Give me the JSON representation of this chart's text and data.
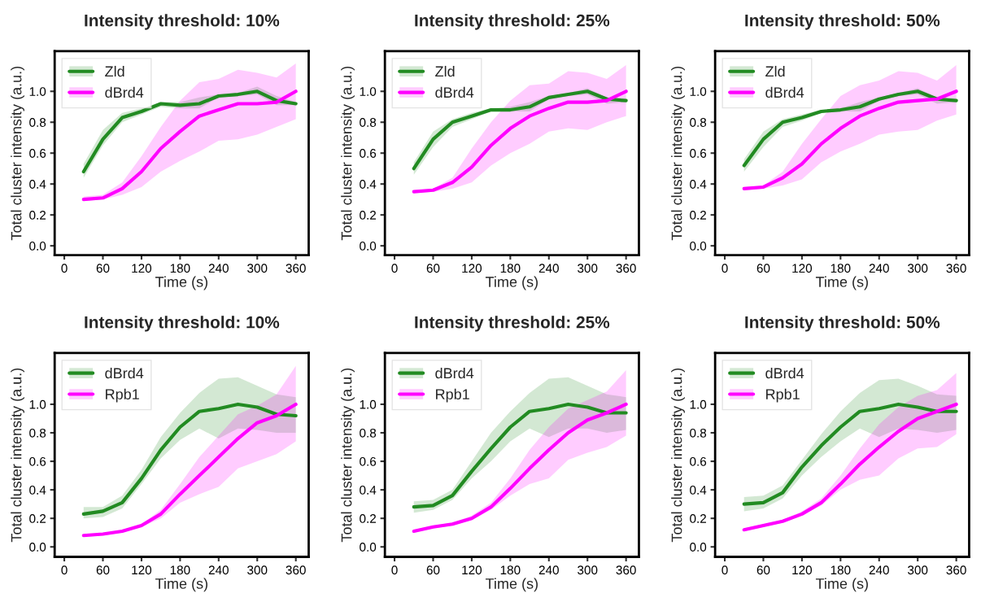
{
  "chart_data": [
    {
      "type": "line",
      "title": "Intensity threshold: 10%",
      "xlabel": "Time (s)",
      "ylabel": "Total cluster intensity (a.u.)",
      "x": [
        30,
        60,
        90,
        120,
        150,
        180,
        210,
        240,
        270,
        300,
        330,
        360
      ],
      "xlim": [
        -15,
        380
      ],
      "ylim": [
        -0.06,
        1.26
      ],
      "xticks": [
        0,
        60,
        120,
        180,
        240,
        300,
        360
      ],
      "yticks": [
        {
          "value": 0,
          "label": "0.0"
        },
        {
          "value": 0.2,
          "label": "0.2"
        },
        {
          "value": 0.4,
          "label": "0.4"
        },
        {
          "value": 0.6,
          "label": "0.6"
        },
        {
          "value": 0.8,
          "label": "0.8"
        },
        {
          "value": 1,
          "label": "1.0"
        }
      ],
      "legend": "top left",
      "series": [
        {
          "name": "Zld",
          "color": "#228b22",
          "values": [
            0.48,
            0.69,
            0.83,
            0.87,
            0.92,
            0.91,
            0.92,
            0.97,
            0.98,
            1.0,
            0.94,
            0.92
          ],
          "lower": [
            0.44,
            0.65,
            0.8,
            0.85,
            0.9,
            0.89,
            0.89,
            0.96,
            0.97,
            0.98,
            0.91,
            0.91
          ],
          "upper": [
            0.53,
            0.75,
            0.86,
            0.89,
            0.93,
            0.93,
            0.96,
            0.98,
            0.99,
            1.03,
            0.97,
            0.93
          ]
        },
        {
          "name": "dBrd4",
          "color": "#ff00ff",
          "values": [
            0.3,
            0.31,
            0.37,
            0.48,
            0.63,
            0.74,
            0.84,
            0.88,
            0.92,
            0.92,
            0.93,
            1.0
          ],
          "lower": [
            0.29,
            0.3,
            0.33,
            0.38,
            0.48,
            0.55,
            0.61,
            0.68,
            0.69,
            0.72,
            0.77,
            0.82
          ],
          "upper": [
            0.32,
            0.33,
            0.41,
            0.58,
            0.77,
            0.94,
            1.06,
            1.08,
            1.14,
            1.12,
            1.09,
            1.18
          ]
        }
      ]
    },
    {
      "type": "line",
      "title": "Intensity threshold: 25%",
      "xlabel": "Time (s)",
      "ylabel": "Total cluster intensity (a.u.)",
      "x": [
        30,
        60,
        90,
        120,
        150,
        180,
        210,
        240,
        270,
        300,
        330,
        360
      ],
      "xlim": [
        -15,
        380
      ],
      "ylim": [
        -0.06,
        1.26
      ],
      "xticks": [
        0,
        60,
        120,
        180,
        240,
        300,
        360
      ],
      "yticks": [
        {
          "value": 0,
          "label": "0.0"
        },
        {
          "value": 0.2,
          "label": "0.2"
        },
        {
          "value": 0.4,
          "label": "0.4"
        },
        {
          "value": 0.6,
          "label": "0.6"
        },
        {
          "value": 0.8,
          "label": "0.8"
        },
        {
          "value": 1,
          "label": "1.0"
        }
      ],
      "legend": "top left",
      "series": [
        {
          "name": "Zld",
          "color": "#228b22",
          "values": [
            0.5,
            0.69,
            0.8,
            0.84,
            0.88,
            0.88,
            0.9,
            0.96,
            0.98,
            1.0,
            0.95,
            0.94
          ],
          "lower": [
            0.46,
            0.64,
            0.77,
            0.82,
            0.87,
            0.87,
            0.87,
            0.95,
            0.97,
            0.98,
            0.92,
            0.93
          ],
          "upper": [
            0.54,
            0.74,
            0.82,
            0.86,
            0.89,
            0.9,
            0.93,
            0.97,
            0.99,
            1.02,
            0.96,
            0.95
          ]
        },
        {
          "name": "dBrd4",
          "color": "#ff00ff",
          "values": [
            0.35,
            0.36,
            0.41,
            0.51,
            0.65,
            0.76,
            0.84,
            0.89,
            0.93,
            0.93,
            0.94,
            1.0
          ],
          "lower": [
            0.34,
            0.35,
            0.37,
            0.41,
            0.52,
            0.6,
            0.66,
            0.74,
            0.76,
            0.75,
            0.8,
            0.84
          ],
          "upper": [
            0.36,
            0.37,
            0.44,
            0.63,
            0.8,
            0.94,
            1.04,
            1.05,
            1.13,
            1.12,
            1.08,
            1.17
          ]
        }
      ]
    },
    {
      "type": "line",
      "title": "Intensity threshold: 50%",
      "xlabel": "Time (s)",
      "ylabel": "Total cluster intensity (a.u.)",
      "x": [
        30,
        60,
        90,
        120,
        150,
        180,
        210,
        240,
        270,
        300,
        330,
        360
      ],
      "xlim": [
        -15,
        380
      ],
      "ylim": [
        -0.06,
        1.26
      ],
      "xticks": [
        0,
        60,
        120,
        180,
        240,
        300,
        360
      ],
      "yticks": [
        {
          "value": 0,
          "label": "0.0"
        },
        {
          "value": 0.2,
          "label": "0.2"
        },
        {
          "value": 0.4,
          "label": "0.4"
        },
        {
          "value": 0.6,
          "label": "0.6"
        },
        {
          "value": 0.8,
          "label": "0.8"
        },
        {
          "value": 1,
          "label": "1.0"
        }
      ],
      "legend": "top left",
      "series": [
        {
          "name": "Zld",
          "color": "#228b22",
          "values": [
            0.52,
            0.69,
            0.8,
            0.83,
            0.87,
            0.88,
            0.9,
            0.95,
            0.98,
            1.0,
            0.95,
            0.94
          ],
          "lower": [
            0.48,
            0.64,
            0.77,
            0.81,
            0.86,
            0.87,
            0.87,
            0.94,
            0.97,
            0.98,
            0.92,
            0.93
          ],
          "upper": [
            0.56,
            0.74,
            0.82,
            0.85,
            0.88,
            0.89,
            0.93,
            0.96,
            0.99,
            1.02,
            0.96,
            0.95
          ]
        },
        {
          "name": "dBrd4",
          "color": "#ff00ff",
          "values": [
            0.37,
            0.38,
            0.44,
            0.53,
            0.66,
            0.76,
            0.84,
            0.89,
            0.93,
            0.94,
            0.95,
            1.0
          ],
          "lower": [
            0.36,
            0.37,
            0.39,
            0.43,
            0.54,
            0.61,
            0.66,
            0.72,
            0.74,
            0.75,
            0.81,
            0.85
          ],
          "upper": [
            0.38,
            0.39,
            0.48,
            0.66,
            0.82,
            0.97,
            1.04,
            1.07,
            1.13,
            1.12,
            1.07,
            1.17
          ]
        }
      ]
    },
    {
      "type": "line",
      "title": "Intensity threshold: 10%",
      "xlabel": "Time (s)",
      "ylabel": "Total cluster intensity (a.u.)",
      "x": [
        30,
        60,
        90,
        120,
        150,
        180,
        210,
        240,
        270,
        300,
        330,
        360
      ],
      "xlim": [
        -15,
        380
      ],
      "ylim": [
        -0.07,
        1.36
      ],
      "xticks": [
        0,
        60,
        120,
        180,
        240,
        300,
        360
      ],
      "yticks": [
        {
          "value": 0,
          "label": "0.0"
        },
        {
          "value": 0.2,
          "label": "0.2"
        },
        {
          "value": 0.4,
          "label": "0.4"
        },
        {
          "value": 0.6,
          "label": "0.6"
        },
        {
          "value": 0.8,
          "label": "0.8"
        },
        {
          "value": 1,
          "label": "1.0"
        }
      ],
      "legend": "top left",
      "series": [
        {
          "name": "dBrd4",
          "color": "#228b22",
          "values": [
            0.23,
            0.25,
            0.31,
            0.48,
            0.68,
            0.84,
            0.95,
            0.97,
            1.0,
            0.98,
            0.93,
            0.92
          ],
          "lower": [
            0.2,
            0.21,
            0.27,
            0.44,
            0.62,
            0.75,
            0.83,
            0.76,
            0.83,
            0.82,
            0.8,
            0.8
          ],
          "upper": [
            0.28,
            0.28,
            0.36,
            0.54,
            0.77,
            0.94,
            1.08,
            1.18,
            1.19,
            1.13,
            1.07,
            1.05
          ]
        },
        {
          "name": "Rpb1",
          "color": "#ff00ff",
          "values": [
            0.08,
            0.09,
            0.11,
            0.15,
            0.23,
            0.37,
            0.5,
            0.63,
            0.76,
            0.87,
            0.92,
            1.0
          ],
          "lower": [
            0.07,
            0.08,
            0.1,
            0.14,
            0.2,
            0.31,
            0.37,
            0.42,
            0.55,
            0.6,
            0.65,
            0.74
          ],
          "upper": [
            0.08,
            0.09,
            0.11,
            0.16,
            0.26,
            0.44,
            0.63,
            0.78,
            0.93,
            0.99,
            1.07,
            1.27
          ]
        }
      ]
    },
    {
      "type": "line",
      "title": "Intensity threshold: 25%",
      "xlabel": "Time (s)",
      "ylabel": "Total cluster intensity (a.u.)",
      "x": [
        30,
        60,
        90,
        120,
        150,
        180,
        210,
        240,
        270,
        300,
        330,
        360
      ],
      "xlim": [
        -15,
        380
      ],
      "ylim": [
        -0.07,
        1.36
      ],
      "xticks": [
        0,
        60,
        120,
        180,
        240,
        300,
        360
      ],
      "yticks": [
        {
          "value": 0,
          "label": "0.0"
        },
        {
          "value": 0.2,
          "label": "0.2"
        },
        {
          "value": 0.4,
          "label": "0.4"
        },
        {
          "value": 0.6,
          "label": "0.6"
        },
        {
          "value": 0.8,
          "label": "0.8"
        },
        {
          "value": 1,
          "label": "1.0"
        }
      ],
      "legend": "top left",
      "series": [
        {
          "name": "dBrd4",
          "color": "#228b22",
          "values": [
            0.28,
            0.29,
            0.36,
            0.53,
            0.69,
            0.84,
            0.95,
            0.97,
            1.0,
            0.98,
            0.94,
            0.94
          ],
          "lower": [
            0.24,
            0.26,
            0.33,
            0.48,
            0.6,
            0.74,
            0.83,
            0.77,
            0.83,
            0.83,
            0.8,
            0.82
          ],
          "upper": [
            0.32,
            0.33,
            0.4,
            0.6,
            0.8,
            0.95,
            1.08,
            1.18,
            1.19,
            1.13,
            1.07,
            1.05
          ]
        },
        {
          "name": "Rpb1",
          "color": "#ff00ff",
          "values": [
            0.11,
            0.14,
            0.16,
            0.2,
            0.28,
            0.41,
            0.55,
            0.68,
            0.8,
            0.89,
            0.94,
            1.0
          ],
          "lower": [
            0.1,
            0.13,
            0.15,
            0.19,
            0.26,
            0.36,
            0.44,
            0.48,
            0.61,
            0.66,
            0.7,
            0.78
          ],
          "upper": [
            0.12,
            0.15,
            0.17,
            0.22,
            0.31,
            0.48,
            0.68,
            0.84,
            0.97,
            1.03,
            1.09,
            1.24
          ]
        }
      ]
    },
    {
      "type": "line",
      "title": "Intensity threshold: 50%",
      "xlabel": "Time (s)",
      "ylabel": "Total cluster intensity (a.u.)",
      "x": [
        30,
        60,
        90,
        120,
        150,
        180,
        210,
        240,
        270,
        300,
        330,
        360
      ],
      "xlim": [
        -15,
        380
      ],
      "ylim": [
        -0.07,
        1.36
      ],
      "xticks": [
        0,
        60,
        120,
        180,
        240,
        300,
        360
      ],
      "yticks": [
        {
          "value": 0,
          "label": "0.0"
        },
        {
          "value": 0.2,
          "label": "0.2"
        },
        {
          "value": 0.4,
          "label": "0.4"
        },
        {
          "value": 0.6,
          "label": "0.6"
        },
        {
          "value": 0.8,
          "label": "0.8"
        },
        {
          "value": 1,
          "label": "1.0"
        }
      ],
      "legend": "top left",
      "series": [
        {
          "name": "dBrd4",
          "color": "#228b22",
          "values": [
            0.3,
            0.31,
            0.38,
            0.56,
            0.71,
            0.84,
            0.95,
            0.97,
            1.0,
            0.98,
            0.95,
            0.95
          ],
          "lower": [
            0.25,
            0.27,
            0.34,
            0.5,
            0.63,
            0.74,
            0.83,
            0.77,
            0.83,
            0.82,
            0.8,
            0.82
          ],
          "upper": [
            0.35,
            0.36,
            0.43,
            0.61,
            0.79,
            0.95,
            1.08,
            1.17,
            1.18,
            1.13,
            1.07,
            1.06
          ]
        },
        {
          "name": "Rpb1",
          "color": "#ff00ff",
          "values": [
            0.12,
            0.15,
            0.18,
            0.23,
            0.31,
            0.44,
            0.58,
            0.7,
            0.81,
            0.9,
            0.95,
            1.0
          ],
          "lower": [
            0.11,
            0.14,
            0.17,
            0.22,
            0.29,
            0.4,
            0.47,
            0.5,
            0.62,
            0.69,
            0.7,
            0.79
          ],
          "upper": [
            0.13,
            0.16,
            0.19,
            0.25,
            0.34,
            0.5,
            0.69,
            0.86,
            0.98,
            1.06,
            1.1,
            1.22
          ]
        }
      ]
    }
  ]
}
